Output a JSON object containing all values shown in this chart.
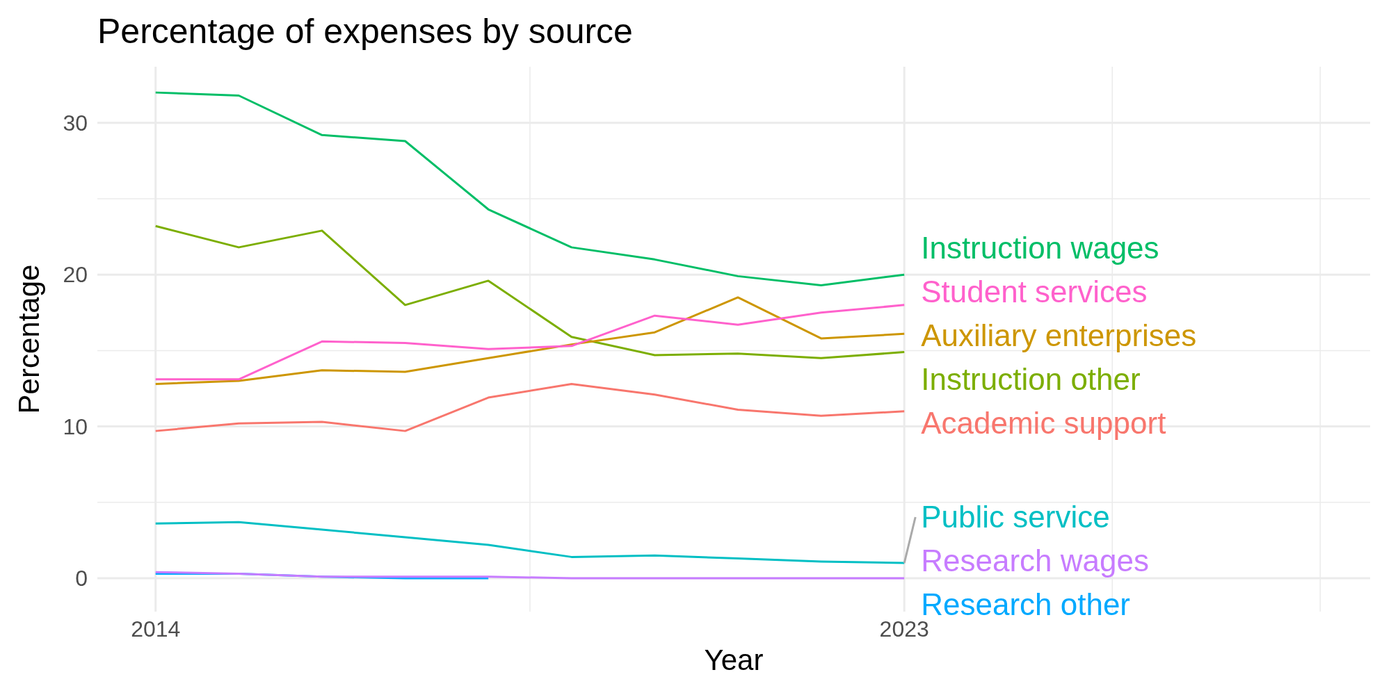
{
  "chart_data": {
    "type": "line",
    "title": "Percentage of expenses by source",
    "xlabel": "Year",
    "ylabel": "Percentage",
    "x": [
      2014,
      2015,
      2016,
      2017,
      2018,
      2019,
      2020,
      2021,
      2022,
      2023
    ],
    "series": [
      {
        "name": "Instruction wages",
        "color": "#00be67",
        "values": [
          32.0,
          31.8,
          29.2,
          28.8,
          24.3,
          21.8,
          21.0,
          19.9,
          19.3,
          20.0
        ]
      },
      {
        "name": "Student services",
        "color": "#ff61cc",
        "values": [
          13.1,
          13.1,
          15.6,
          15.5,
          15.1,
          15.3,
          17.3,
          16.7,
          17.5,
          18.0
        ]
      },
      {
        "name": "Auxiliary enterprises",
        "color": "#cd9600",
        "values": [
          12.8,
          13.0,
          13.7,
          13.6,
          14.5,
          15.4,
          16.2,
          18.5,
          15.8,
          16.1
        ]
      },
      {
        "name": "Instruction other",
        "color": "#7cae00",
        "values": [
          23.2,
          21.8,
          22.9,
          18.0,
          19.6,
          15.9,
          14.7,
          14.8,
          14.5,
          14.9
        ]
      },
      {
        "name": "Academic support",
        "color": "#f8766d",
        "values": [
          9.7,
          10.2,
          10.3,
          9.7,
          11.9,
          12.8,
          12.1,
          11.1,
          10.7,
          11.0
        ]
      },
      {
        "name": "Public service",
        "color": "#00bfc4",
        "values": [
          3.6,
          3.7,
          3.2,
          2.7,
          2.2,
          1.4,
          1.5,
          1.3,
          1.1,
          1.0
        ]
      },
      {
        "name": "Research wages",
        "color": "#c77cff",
        "values": [
          0.4,
          0.3,
          0.1,
          0.1,
          0.1,
          0,
          0,
          0,
          0,
          0
        ]
      },
      {
        "name": "Research other",
        "color": "#00a9ff",
        "values": [
          0.3,
          0.3,
          0.1,
          0.0,
          0.0,
          null,
          null,
          null,
          null,
          null
        ]
      }
    ],
    "xlim": [
      2013.3,
      2028.6
    ],
    "ylim": [
      -2.2,
      33.7
    ],
    "xticks": [
      2014,
      {
        "value": 2018.5,
        "label": null
      },
      2023,
      {
        "value": 2025.5,
        "label": null
      },
      {
        "value": 2028,
        "label": null
      }
    ],
    "yticks": [
      0,
      {
        "value": 5,
        "label": null
      },
      10,
      {
        "value": 15,
        "label": null
      },
      20,
      {
        "value": 25,
        "label": null
      },
      30
    ],
    "grid": true,
    "line_style": "solid",
    "marker": "none"
  }
}
